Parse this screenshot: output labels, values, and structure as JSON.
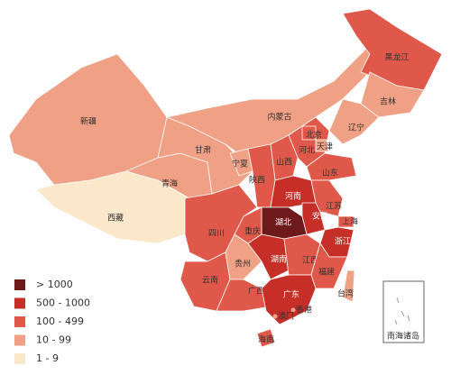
{
  "legend": {
    "items": [
      {
        "label": "> 1000",
        "color": "#6e1a1a"
      },
      {
        "label": "500 - 1000",
        "color": "#c62f28"
      },
      {
        "label": "100 - 499",
        "color": "#e0584a"
      },
      {
        "label": "10 - 99",
        "color": "#f0a084"
      },
      {
        "label": "1 - 9",
        "color": "#fbe8cb"
      }
    ]
  },
  "regions": [
    {
      "name": "新疆",
      "level": 3
    },
    {
      "name": "西藏",
      "level": 4
    },
    {
      "name": "青海",
      "level": 3
    },
    {
      "name": "甘肃",
      "level": 3
    },
    {
      "name": "内蒙古",
      "level": 3
    },
    {
      "name": "黑龙江",
      "level": 2
    },
    {
      "name": "吉林",
      "level": 3
    },
    {
      "name": "辽宁",
      "level": 3
    },
    {
      "name": "河北",
      "level": 2
    },
    {
      "name": "北京",
      "level": 2
    },
    {
      "name": "天津",
      "level": 3
    },
    {
      "name": "山西",
      "level": 2
    },
    {
      "name": "宁夏",
      "level": 3
    },
    {
      "name": "陕西",
      "level": 2
    },
    {
      "name": "山东",
      "level": 2
    },
    {
      "name": "河南",
      "level": 1
    },
    {
      "name": "江苏",
      "level": 2
    },
    {
      "name": "安徽",
      "level": 1
    },
    {
      "name": "上海",
      "level": 2
    },
    {
      "name": "浙江",
      "level": 1
    },
    {
      "name": "湖北",
      "level": 0
    },
    {
      "name": "重庆",
      "level": 2
    },
    {
      "name": "四川",
      "level": 2
    },
    {
      "name": "云南",
      "level": 2
    },
    {
      "name": "贵州",
      "level": 3
    },
    {
      "name": "湖南",
      "level": 1
    },
    {
      "name": "江西",
      "level": 2
    },
    {
      "name": "福建",
      "level": 2
    },
    {
      "name": "广西",
      "level": 2
    },
    {
      "name": "广东",
      "level": 1
    },
    {
      "name": "海南",
      "level": 2
    },
    {
      "name": "台湾",
      "level": 3
    },
    {
      "name": "香港",
      "level": 3
    },
    {
      "name": "澳门",
      "level": 3
    }
  ],
  "inset": {
    "label": "南海诸岛"
  }
}
